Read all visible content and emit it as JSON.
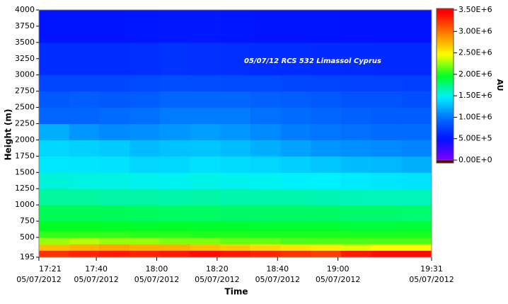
{
  "chart_data": {
    "type": "heatmap",
    "title": "05/07/12 RCS 532 Limassol Cyprus",
    "xlabel": "Time",
    "ylabel": "Height (m)",
    "zlabel": "AU",
    "xlim": [
      "17:21",
      "19:31"
    ],
    "xticks": [
      {
        "time": "17:21",
        "date": "05/07/2012"
      },
      {
        "time": "17:40",
        "date": "05/07/2012"
      },
      {
        "time": "18:00",
        "date": "05/07/2012"
      },
      {
        "time": "18:20",
        "date": "05/07/2012"
      },
      {
        "time": "18:40",
        "date": "05/07/2012"
      },
      {
        "time": "19:00",
        "date": "05/07/2012"
      },
      {
        "time": "19:31",
        "date": "05/07/2012"
      }
    ],
    "ylim": [
      195,
      4000
    ],
    "yticks": [
      195,
      500,
      750,
      1000,
      1250,
      1500,
      1750,
      2000,
      2250,
      2500,
      2750,
      3000,
      3250,
      3500,
      3750,
      4000
    ],
    "x_edges": [
      "17:21",
      "17:31",
      "17:41",
      "17:51",
      "18:01",
      "18:11",
      "18:21",
      "18:31",
      "18:41",
      "18:51",
      "19:01",
      "19:11",
      "19:21",
      "19:31"
    ],
    "y_edges": [
      195,
      300,
      400,
      500,
      600,
      750,
      1000,
      1250,
      1500,
      1750,
      2000,
      2250,
      2500,
      2750,
      3000,
      3500,
      4000
    ],
    "z": [
      [
        3300000,
        3350000,
        3400000,
        3350000,
        3400000,
        3450000,
        3400000,
        3350000,
        3300000,
        3250000,
        3400000,
        3450000,
        3450000
      ],
      [
        2750000,
        2800000,
        2850000,
        2800000,
        2800000,
        2750000,
        2700000,
        2650000,
        2600000,
        2550000,
        2450000,
        2500000,
        2500000
      ],
      [
        2300000,
        2350000,
        2300000,
        2300000,
        2250000,
        2250000,
        2200000,
        2200000,
        2150000,
        2150000,
        2150000,
        2150000,
        2150000
      ],
      [
        2100000,
        2100000,
        2100000,
        2080000,
        2080000,
        2060000,
        2060000,
        2050000,
        2050000,
        2050000,
        2050000,
        2050000,
        2050000
      ],
      [
        2000000,
        2000000,
        1990000,
        1980000,
        1980000,
        1970000,
        1970000,
        1960000,
        1960000,
        1960000,
        1950000,
        1950000,
        1950000
      ],
      [
        1880000,
        1880000,
        1870000,
        1860000,
        1850000,
        1850000,
        1840000,
        1840000,
        1840000,
        1840000,
        1830000,
        1830000,
        1820000
      ],
      [
        1720000,
        1720000,
        1700000,
        1700000,
        1690000,
        1700000,
        1680000,
        1680000,
        1680000,
        1670000,
        1660000,
        1650000,
        1650000
      ],
      [
        1580000,
        1570000,
        1560000,
        1540000,
        1530000,
        1550000,
        1540000,
        1530000,
        1510000,
        1500000,
        1480000,
        1460000,
        1450000
      ],
      [
        1470000,
        1460000,
        1450000,
        1400000,
        1410000,
        1440000,
        1420000,
        1400000,
        1370000,
        1340000,
        1300000,
        1280000,
        1250000
      ],
      [
        1400000,
        1380000,
        1350000,
        1300000,
        1320000,
        1330000,
        1300000,
        1250000,
        1200000,
        1150000,
        1120000,
        1100000,
        1080000
      ],
      [
        1250000,
        1150000,
        1100000,
        1120000,
        1150000,
        1180000,
        1150000,
        1100000,
        1050000,
        1020000,
        1000000,
        980000,
        980000
      ],
      [
        950000,
        950000,
        980000,
        1000000,
        1050000,
        1050000,
        1050000,
        1000000,
        980000,
        950000,
        920000,
        900000,
        900000
      ],
      [
        880000,
        900000,
        880000,
        900000,
        950000,
        950000,
        950000,
        920000,
        900000,
        880000,
        850000,
        850000,
        830000
      ],
      [
        780000,
        780000,
        780000,
        800000,
        830000,
        820000,
        800000,
        800000,
        780000,
        770000,
        760000,
        760000,
        750000
      ],
      [
        650000,
        650000,
        650000,
        660000,
        680000,
        670000,
        660000,
        650000,
        650000,
        640000,
        640000,
        630000,
        630000
      ],
      [
        520000,
        520000,
        520000,
        530000,
        540000,
        540000,
        530000,
        520000,
        520000,
        520000,
        510000,
        510000,
        510000
      ]
    ],
    "zlim": [
      0,
      3600000
    ],
    "zticks": [
      {
        "value": 0,
        "label": "0.00E+0"
      },
      {
        "value": 500000,
        "label": "5.00E+5"
      },
      {
        "value": 1000000,
        "label": "1.00E+6"
      },
      {
        "value": 1500000,
        "label": "1.50E+6"
      },
      {
        "value": 2000000,
        "label": "2.00E+6"
      },
      {
        "value": 2500000,
        "label": "2.50E+6"
      },
      {
        "value": 3000000,
        "label": "3.00E+6"
      },
      {
        "value": 3500000,
        "label": "3.50E+6"
      }
    ],
    "colorscale": [
      "#8000ff",
      "#0010ff",
      "#0070ff",
      "#00f0ff",
      "#00ff20",
      "#ffff00",
      "#ff8000",
      "#ff0000"
    ]
  }
}
